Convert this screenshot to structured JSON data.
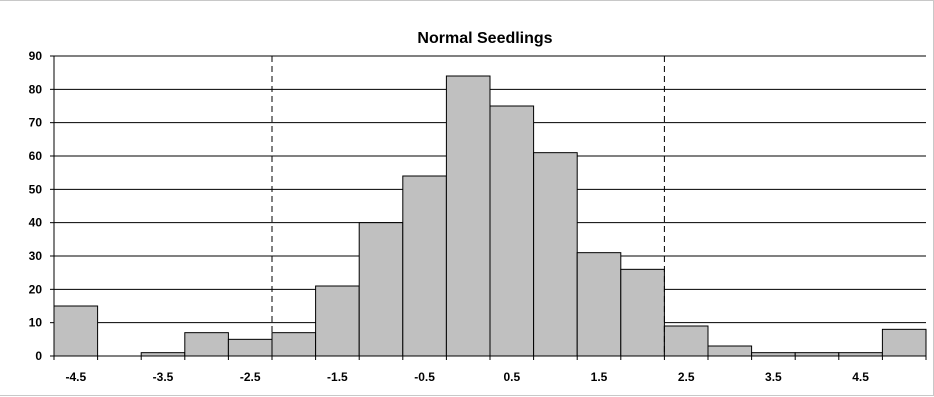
{
  "chart_data": {
    "type": "bar",
    "title": "Normal Seedlings",
    "xlabel": "",
    "ylabel": "",
    "ylim": [
      0,
      90
    ],
    "y_ticks": [
      "0",
      "10",
      "20",
      "30",
      "40",
      "50",
      "60",
      "70",
      "80",
      "90"
    ],
    "x_tick_labels": [
      "-4.5",
      "-3.5",
      "-2.5",
      "-1.5",
      "-0.5",
      "0.5",
      "1.5",
      "2.5",
      "3.5",
      "4.5"
    ],
    "categories": [
      "-4.5",
      "-4",
      "-3.5",
      "-3",
      "-2.5",
      "-2",
      "-1.5",
      "-1",
      "-0.5",
      "0",
      "0.5",
      "1",
      "1.5",
      "2",
      "2.5",
      "3",
      "3.5",
      "4",
      "4.5",
      "5"
    ],
    "values": [
      15,
      0,
      1,
      7,
      5,
      7,
      21,
      40,
      54,
      84,
      75,
      61,
      31,
      26,
      9,
      3,
      1,
      1,
      1,
      8
    ],
    "reference_lines_x": [
      -2.25,
      2.25
    ],
    "grid": "horizontal",
    "bar_color": "#c0c0c0",
    "bar_edge_color": "#000000"
  }
}
